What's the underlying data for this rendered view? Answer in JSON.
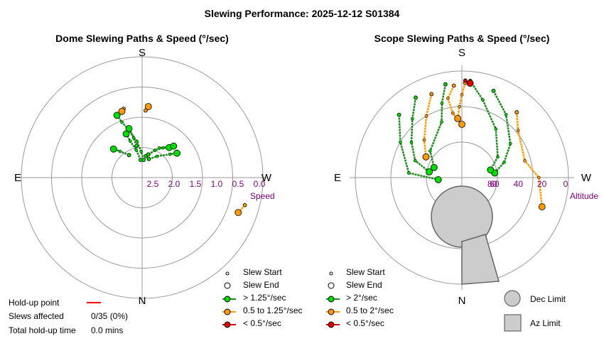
{
  "title": "Slewing Performance: 2025-12-12 S01384",
  "colors": {
    "ring": "#999999",
    "axis": "#999999",
    "fast": "#00dd00",
    "fast_line": "#1a8c1a",
    "medium": "#ff9900",
    "slow": "#dd0000",
    "radial_label": "#800080",
    "limit_fill": "#cccccc",
    "limit_stroke": "#666666",
    "holdup": "#ff0000"
  },
  "chart_data": [
    {
      "type": "scatter",
      "title": "Dome Slewing Paths & Speed (°/sec)",
      "compass": {
        "top": "S",
        "bottom": "N",
        "left": "E",
        "right": "W"
      },
      "radial_label": "Speed",
      "radial_ticks": [
        "2.5",
        "2.0",
        "1.5",
        "1.0",
        "0.5",
        "0.0"
      ],
      "legend": [
        {
          "marker": "small-hollow",
          "label": "Slew Start"
        },
        {
          "marker": "large-hollow",
          "label": "Slew End"
        },
        {
          "marker": "green",
          "label": "> 1.25°/sec"
        },
        {
          "marker": "orange",
          "label": "0.5 to 1.25°/sec"
        },
        {
          "marker": "red",
          "label": "< 0.5°/sec"
        }
      ],
      "series": [
        {
          "speed": "fast",
          "points": [
            [
              185,
              2.5
            ],
            [
              178,
              2.3
            ],
            [
              172,
              2.05
            ],
            [
              165,
              1.75
            ],
            [
              160,
              1.5
            ],
            [
              158,
              1.3
            ]
          ]
        },
        {
          "speed": "fast",
          "points": [
            [
              175,
              2.5
            ],
            [
              168,
              2.25
            ],
            [
              162,
              2.0
            ],
            [
              160,
              1.8
            ]
          ]
        },
        {
          "speed": "fast",
          "points": [
            [
              190,
              2.4
            ],
            [
              205,
              2.2
            ],
            [
              215,
              2.05
            ],
            [
              222,
              1.95
            ]
          ]
        },
        {
          "speed": "fast",
          "points": [
            [
              150,
              2.3
            ],
            [
              140,
              2.1
            ],
            [
              135,
              1.95
            ]
          ]
        },
        {
          "speed": "fast",
          "points": [
            [
              200,
              2.45
            ],
            [
              215,
              2.3
            ],
            [
              230,
              2.05
            ],
            [
              235,
              1.9
            ]
          ]
        },
        {
          "speed": "fast",
          "points": [
            [
              170,
              2.15
            ],
            [
              168,
              1.95
            ],
            [
              165,
              1.7
            ]
          ]
        },
        {
          "speed": "fast",
          "points": [
            [
              195,
              2.35
            ],
            [
              210,
              2.1
            ],
            [
              225,
              1.85
            ]
          ]
        },
        {
          "speed": "medium",
          "points": [
            [
              183,
              1.3
            ],
            [
              185,
              1.2
            ]
          ]
        },
        {
          "speed": "medium",
          "points": [
            [
              165,
              1.2
            ],
            [
              163,
              1.25
            ]
          ]
        },
        {
          "speed": "medium",
          "points": [
            [
              285,
              0.35
            ],
            [
              290,
              0.45
            ]
          ]
        }
      ],
      "slew_starts": [
        [
          185,
          2.5
        ],
        [
          175,
          2.5
        ],
        [
          190,
          2.4
        ],
        [
          150,
          2.3
        ],
        [
          200,
          2.45
        ],
        [
          170,
          2.15
        ],
        [
          195,
          2.35
        ],
        [
          183,
          1.3
        ],
        [
          165,
          1.2
        ],
        [
          285,
          0.35
        ]
      ],
      "slew_ends": [
        [
          158,
          1.3
        ],
        [
          160,
          1.8
        ],
        [
          222,
          1.95
        ],
        [
          135,
          1.95
        ],
        [
          235,
          1.9
        ],
        [
          165,
          1.7
        ],
        [
          225,
          1.85
        ],
        [
          185,
          1.2
        ],
        [
          163,
          1.25
        ],
        [
          290,
          0.45
        ]
      ]
    },
    {
      "type": "scatter",
      "title": "Scope Slewing Paths & Speed (°/sec)",
      "compass": {
        "top": "S",
        "bottom": "N",
        "left": "E",
        "right": "W"
      },
      "radial_label": "Altitude",
      "radial_ticks": [
        "80",
        "60",
        "40",
        "20",
        "0"
      ],
      "legend": [
        {
          "marker": "small-hollow",
          "label": "Slew Start"
        },
        {
          "marker": "large-hollow",
          "label": "Slew End"
        },
        {
          "marker": "green",
          "label": "> 2°/sec"
        },
        {
          "marker": "orange",
          "label": "0.5 to 2°/sec"
        },
        {
          "marker": "red",
          "label": "< 0.5°/sec"
        }
      ],
      "limits": [
        {
          "marker": "circle",
          "label": "Dec Limit"
        },
        {
          "marker": "square",
          "label": "Az Limit"
        }
      ],
      "series": [
        {
          "speed": "fast",
          "points": [
            [
              200,
              12
            ],
            [
              215,
              25
            ],
            [
              235,
              40
            ],
            [
              250,
              52
            ],
            [
              262,
              62
            ]
          ]
        },
        {
          "speed": "fast",
          "points": [
            [
              185,
              8
            ],
            [
              195,
              22
            ],
            [
              215,
              40
            ],
            [
              240,
              55
            ],
            [
              255,
              65
            ]
          ]
        },
        {
          "speed": "fast",
          "points": [
            [
              170,
              10
            ],
            [
              165,
              25
            ],
            [
              160,
              40
            ],
            [
              130,
              55
            ],
            [
              110,
              65
            ]
          ]
        },
        {
          "speed": "fast",
          "points": [
            [
              150,
              12
            ],
            [
              140,
              25
            ],
            [
              125,
              38
            ],
            [
              110,
              48
            ],
            [
              100,
              62
            ]
          ]
        },
        {
          "speed": "fast",
          "points": [
            [
              135,
              15
            ],
            [
              120,
              30
            ],
            [
              95,
              45
            ],
            [
              85,
              70
            ]
          ]
        },
        {
          "speed": "medium",
          "points": [
            [
              182,
              10
            ],
            [
              180,
              20
            ],
            [
              178,
              30
            ],
            [
              176,
              40
            ]
          ]
        },
        {
          "speed": "medium",
          "points": [
            [
              160,
              15
            ],
            [
              150,
              30
            ],
            [
              135,
              45
            ],
            [
              120,
              55
            ]
          ]
        },
        {
          "speed": "medium",
          "points": [
            [
              220,
              18
            ],
            [
              230,
              28
            ],
            [
              255,
              35
            ],
            [
              270,
              25
            ],
            [
              290,
              18
            ]
          ]
        },
        {
          "speed": "medium",
          "points": [
            [
              175,
              12
            ],
            [
              170,
              22
            ],
            [
              172,
              35
            ],
            [
              180,
              45
            ]
          ]
        },
        {
          "speed": "slow",
          "points": [
            [
              182,
              8
            ],
            [
              185,
              10
            ]
          ]
        }
      ],
      "slew_starts": [
        [
          200,
          12
        ],
        [
          185,
          8
        ],
        [
          170,
          10
        ],
        [
          150,
          12
        ],
        [
          135,
          15
        ],
        [
          182,
          10
        ],
        [
          160,
          15
        ],
        [
          220,
          18
        ],
        [
          175,
          12
        ],
        [
          182,
          8
        ]
      ],
      "slew_ends": [
        [
          262,
          62
        ],
        [
          255,
          65
        ],
        [
          110,
          65
        ],
        [
          100,
          62
        ],
        [
          85,
          70
        ],
        [
          176,
          40
        ],
        [
          120,
          55
        ],
        [
          290,
          18
        ],
        [
          180,
          45
        ],
        [
          185,
          10
        ]
      ]
    }
  ],
  "holdup": {
    "point_label": "Hold-up point",
    "slews_label": "Slews affected",
    "slews_value": "0/35 (0%)",
    "total_label": "Total hold-up time",
    "total_value": "0.0 mins"
  }
}
